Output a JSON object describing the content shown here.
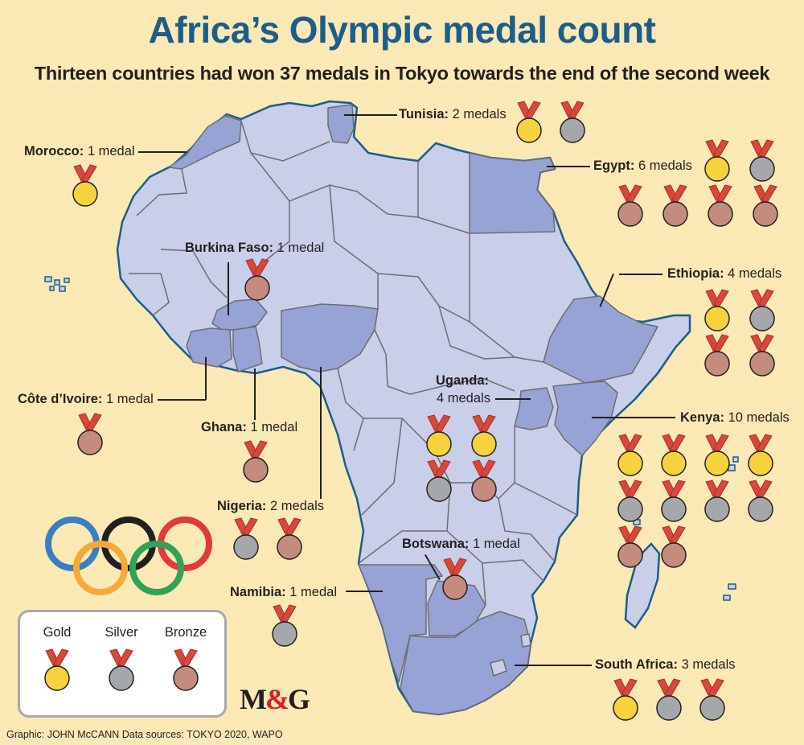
{
  "title": "Africa’s Olympic medal count",
  "subtitle": "Thirteen countries had won 37 medals in Tokyo towards the end of the second week",
  "colors": {
    "background": "#fbe9b5",
    "continent": "#c9cfe9",
    "highlight": "#97a3d4",
    "border": "#6d6d73",
    "title": "#1c5d8a",
    "gold": "#f6d23c",
    "silver": "#a5a8ab",
    "bronze": "#c48b7f",
    "ribbon": "#d9473a"
  },
  "countries": [
    {
      "name": "Tunisia:",
      "count": "2 medals",
      "medals": [
        "gold",
        "silver"
      ]
    },
    {
      "name": "Morocco:",
      "count": "1 medal",
      "medals": [
        "gold"
      ]
    },
    {
      "name": "Egypt:",
      "count": "6 medals",
      "medals": [
        "gold",
        "silver",
        "bronze",
        "bronze",
        "bronze",
        "bronze"
      ]
    },
    {
      "name": "Burkina Faso:",
      "count": "1 medal",
      "medals": [
        "bronze"
      ]
    },
    {
      "name": "Ethiopia:",
      "count": "4 medals",
      "medals": [
        "gold",
        "silver",
        "bronze",
        "bronze"
      ]
    },
    {
      "name": "Uganda:",
      "count": "4 medals",
      "medals": [
        "gold",
        "gold",
        "silver",
        "bronze"
      ]
    },
    {
      "name": "Kenya:",
      "count": "10 medals",
      "medals": [
        "gold",
        "gold",
        "gold",
        "gold",
        "silver",
        "silver",
        "silver",
        "silver",
        "bronze",
        "bronze"
      ]
    },
    {
      "name": "Côte d’Ivoire:",
      "count": "1 medal",
      "medals": [
        "bronze"
      ]
    },
    {
      "name": "Ghana:",
      "count": "1 medal",
      "medals": [
        "bronze"
      ]
    },
    {
      "name": "Nigeria:",
      "count": "2 medals",
      "medals": [
        "silver",
        "bronze"
      ]
    },
    {
      "name": "Botswana:",
      "count": "1 medal",
      "medals": [
        "bronze"
      ]
    },
    {
      "name": "Namibia:",
      "count": "1 medal",
      "medals": [
        "silver"
      ]
    },
    {
      "name": "South Africa:",
      "count": "3 medals",
      "medals": [
        "gold",
        "silver",
        "silver"
      ]
    }
  ],
  "legend": {
    "gold": "Gold",
    "silver": "Silver",
    "bronze": "Bronze"
  },
  "olympic_ring_colors": [
    "#3a7fc2",
    "#231f20",
    "#e03a3e",
    "#f4a93a",
    "#2fa35a"
  ],
  "logo": {
    "left": "M",
    "amp": "&",
    "right": "G"
  },
  "credits": "Graphic: JOHN McCANN  Data sources: TOKYO 2020, WAPO"
}
